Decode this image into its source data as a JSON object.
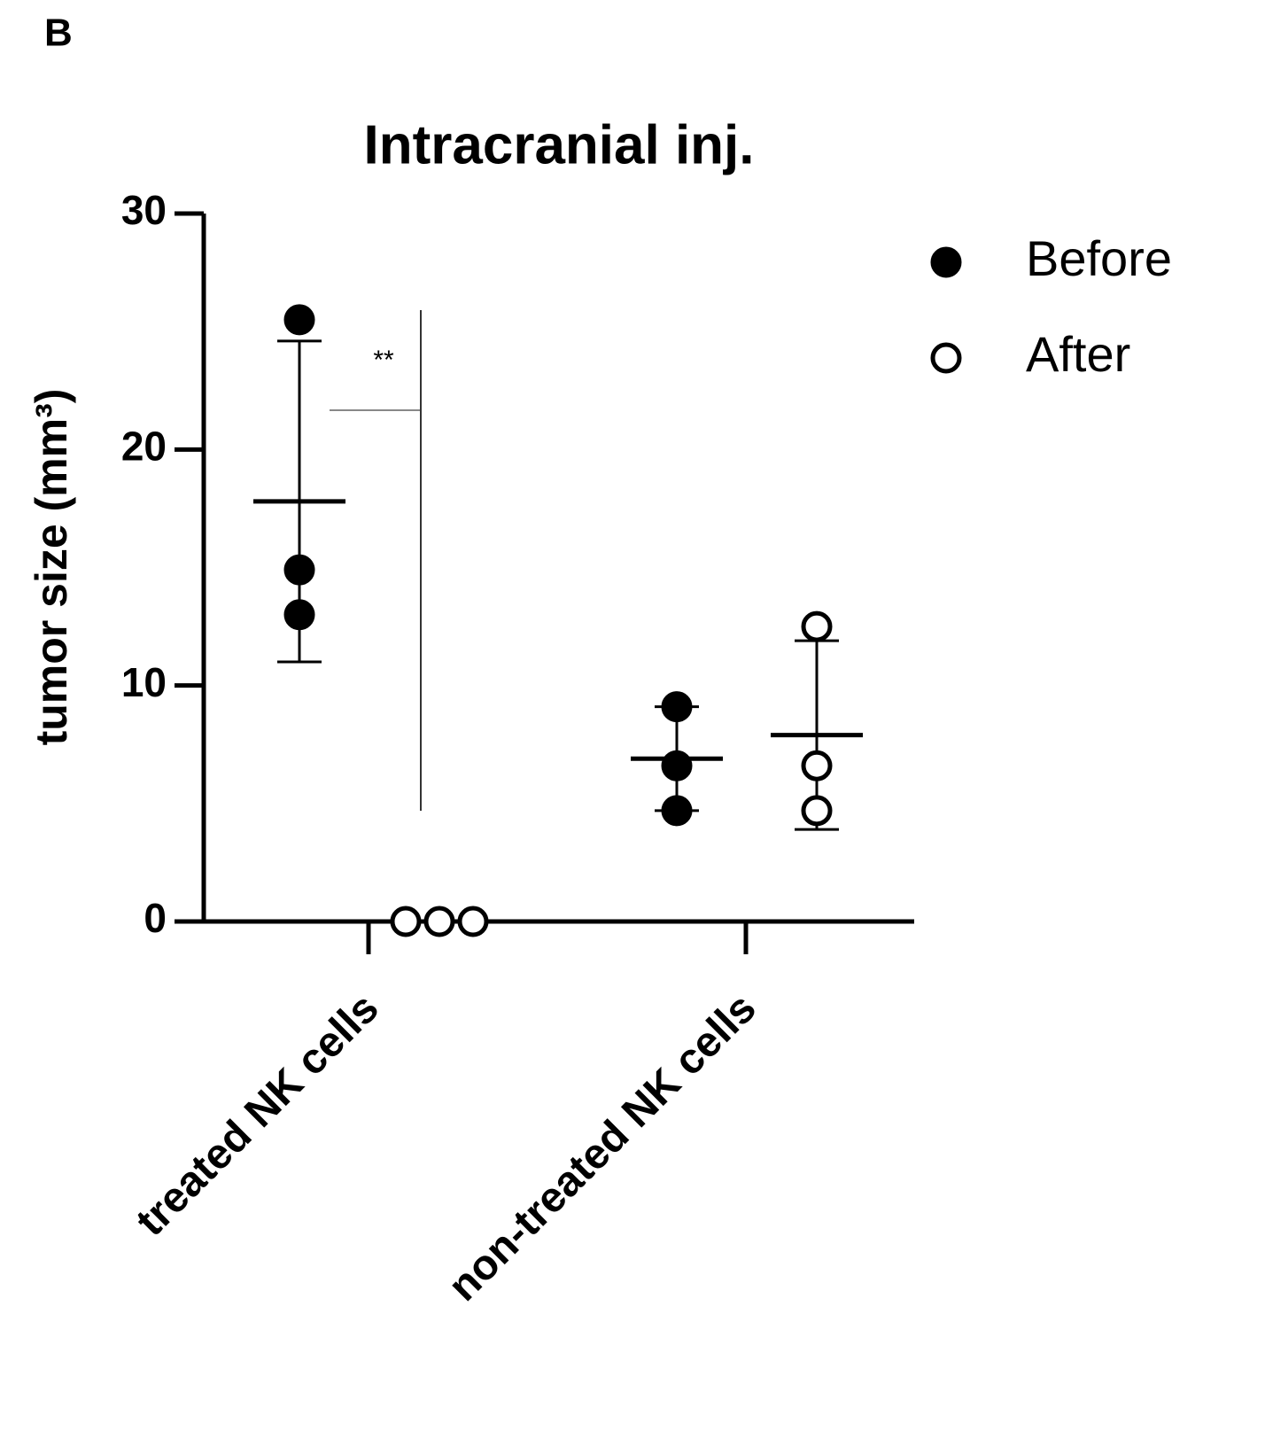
{
  "panel_label": "B",
  "chart_data": {
    "type": "scatter",
    "title": "Intracranial inj.",
    "y_label": "tumor size (mm³)",
    "categories": [
      "treated NK cells",
      "non-treated NK cells"
    ],
    "series": [
      {
        "name": "Before",
        "filled": true,
        "color": "#000000",
        "values": [
          [
            25.5,
            14.9,
            13.0
          ],
          [
            9.1,
            6.6,
            4.7
          ]
        ],
        "mean": [
          17.8,
          6.9
        ],
        "sd": [
          6.8,
          2.2
        ]
      },
      {
        "name": "After",
        "filled": false,
        "color": "#000000",
        "values": [
          [
            0,
            0,
            0
          ],
          [
            12.5,
            6.6,
            4.7
          ]
        ],
        "mean": [
          null,
          7.9
        ],
        "sd": [
          null,
          4.0
        ]
      }
    ],
    "ylim": [
      0,
      30
    ],
    "yticks": [
      0,
      10,
      20,
      30
    ],
    "annotation": "**",
    "legend": "top-right"
  }
}
